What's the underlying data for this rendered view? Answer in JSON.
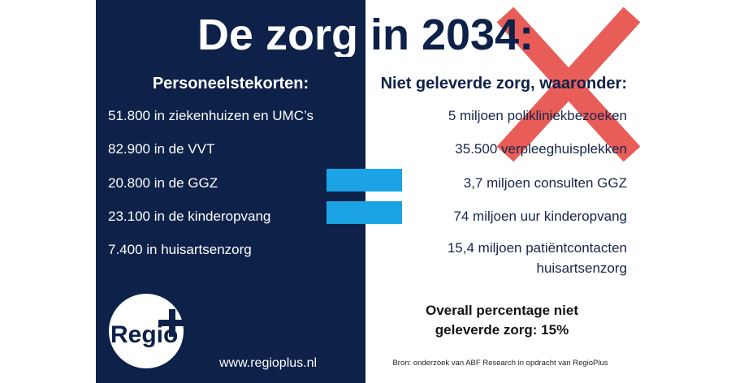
{
  "title": "De zorg in 2034:",
  "left": {
    "heading": "Personeelstekorten:",
    "items": [
      "51.800 in ziekenhuizen en UMC’s",
      "82.900 in de VVT",
      "20.800 in de GGZ",
      "23.100 in de kinderopvang",
      "7.400 in huisartsenzorg"
    ]
  },
  "right": {
    "heading": "Niet geleverde zorg, waaronder:",
    "items": [
      {
        "lines": [
          "5 miljoen polikliniekbezoeken"
        ]
      },
      {
        "lines": [
          "35.500 verpleeghuisplekken"
        ]
      },
      {
        "lines": [
          "3,7 miljoen consulten GGZ"
        ]
      },
      {
        "lines": [
          "74 miljoen uur kinderopvang"
        ]
      },
      {
        "lines": [
          "15,4 miljoen patiëntcontacten",
          "huisartsenzorg"
        ]
      }
    ],
    "summary": {
      "lines": [
        "Overall percentage niet",
        "geleverde zorg: 15%"
      ]
    },
    "source": "Bron: onderzoek van ABF Research in opdracht van RegioPlus"
  },
  "logo": {
    "text": "Regio",
    "icon": "plus-icon"
  },
  "website": "www.regioplus.nl",
  "icons": {
    "equals": "equals-icon",
    "cross": "cross-icon"
  },
  "colors": {
    "navy": "#0d2149",
    "navy_text": "#16264a",
    "accent": "#1ba3e6",
    "red": "#e8504c"
  }
}
